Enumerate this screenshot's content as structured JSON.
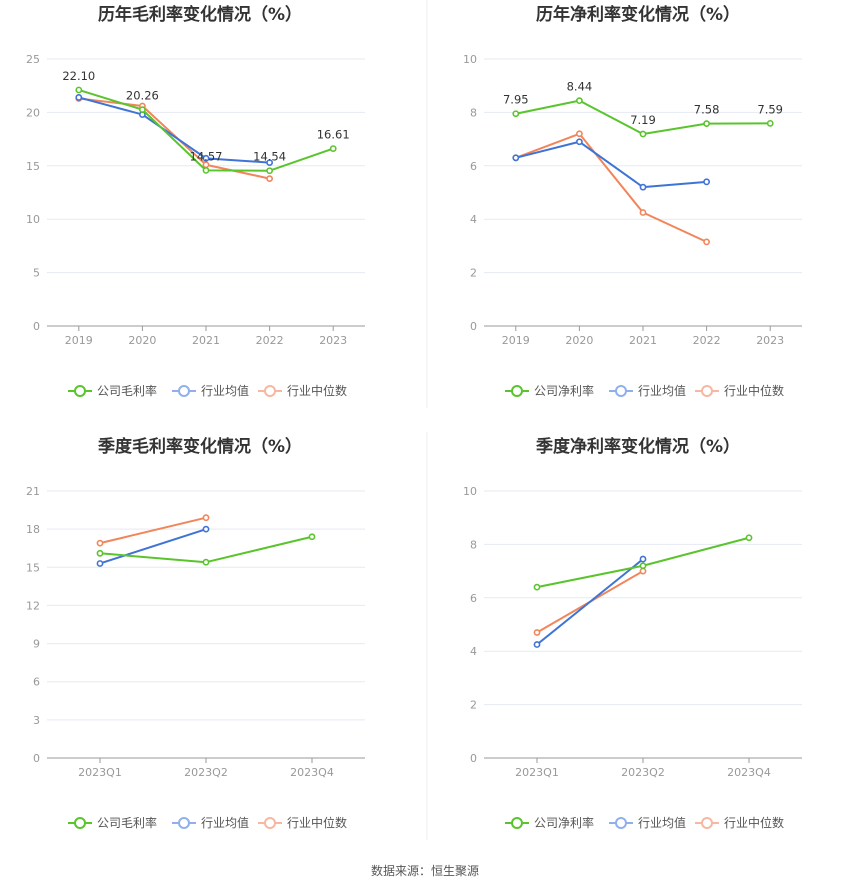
{
  "colors": {
    "company": "#5ac42c",
    "industry_avg": "#3f73d6",
    "industry_median": "#f2855a",
    "legend_avg": "#8fb0ec",
    "legend_median": "#f7b7a0"
  },
  "chart_data": [
    {
      "type": "line",
      "title": "历年毛利率变化情况（%）",
      "categories": [
        "2019",
        "2020",
        "2021",
        "2022",
        "2023"
      ],
      "ylim": [
        0,
        25
      ],
      "yticks": [
        0,
        5,
        10,
        15,
        20,
        25
      ],
      "series": [
        {
          "key": "company",
          "name": "公司毛利率",
          "values": [
            22.1,
            20.26,
            14.57,
            14.54,
            16.61
          ],
          "labels": [
            "22.10",
            "20.26",
            "14.57",
            "14.54",
            "16.61"
          ]
        },
        {
          "key": "industry_avg",
          "name": "行业均值",
          "values": [
            21.4,
            19.8,
            15.7,
            15.3,
            null
          ]
        },
        {
          "key": "industry_median",
          "name": "行业中位数",
          "values": [
            21.3,
            20.6,
            15.1,
            13.8,
            null
          ]
        }
      ]
    },
    {
      "type": "line",
      "title": "历年净利率变化情况（%）",
      "categories": [
        "2019",
        "2020",
        "2021",
        "2022",
        "2023"
      ],
      "ylim": [
        0,
        10
      ],
      "yticks": [
        0,
        2,
        4,
        6,
        8,
        10
      ],
      "series": [
        {
          "key": "company",
          "name": "公司净利率",
          "values": [
            7.95,
            8.44,
            7.19,
            7.58,
            7.59
          ],
          "labels": [
            "7.95",
            "8.44",
            "7.19",
            "7.58",
            "7.59"
          ]
        },
        {
          "key": "industry_avg",
          "name": "行业均值",
          "values": [
            6.3,
            6.9,
            5.2,
            5.4,
            null
          ]
        },
        {
          "key": "industry_median",
          "name": "行业中位数",
          "values": [
            6.3,
            7.2,
            4.25,
            3.15,
            null
          ]
        }
      ]
    },
    {
      "type": "line",
      "title": "季度毛利率变化情况（%）",
      "categories": [
        "2023Q1",
        "2023Q2",
        "2023Q4"
      ],
      "ylim": [
        0,
        21
      ],
      "yticks": [
        0,
        3,
        6,
        9,
        12,
        15,
        18,
        21
      ],
      "series": [
        {
          "key": "company",
          "name": "公司毛利率",
          "values": [
            16.1,
            15.4,
            17.4
          ]
        },
        {
          "key": "industry_avg",
          "name": "行业均值",
          "values": [
            15.3,
            18.0,
            null
          ]
        },
        {
          "key": "industry_median",
          "name": "行业中位数",
          "values": [
            16.9,
            18.9,
            null
          ]
        }
      ]
    },
    {
      "type": "line",
      "title": "季度净利率变化情况（%）",
      "categories": [
        "2023Q1",
        "2023Q2",
        "2023Q4"
      ],
      "ylim": [
        0,
        10
      ],
      "yticks": [
        0,
        2,
        4,
        6,
        8,
        10
      ],
      "series": [
        {
          "key": "company",
          "name": "公司净利率",
          "values": [
            6.4,
            7.2,
            8.25
          ]
        },
        {
          "key": "industry_avg",
          "name": "行业均值",
          "values": [
            4.25,
            7.45,
            null
          ]
        },
        {
          "key": "industry_median",
          "name": "行业中位数",
          "values": [
            4.7,
            7.0,
            null
          ]
        }
      ]
    }
  ],
  "footer": {
    "source": "数据来源：恒生聚源"
  }
}
